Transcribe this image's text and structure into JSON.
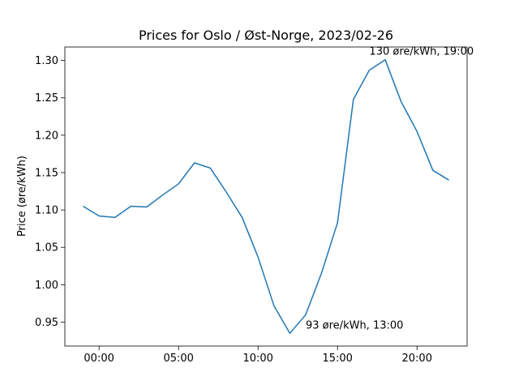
{
  "chart_data": {
    "type": "line",
    "title": "Prices for Oslo / Øst-Norge, 2023/02-26",
    "xlabel": "",
    "ylabel": "Price (øre/kWh)",
    "x_unit": "hour",
    "x": [
      -1,
      0,
      1,
      2,
      3,
      4,
      5,
      6,
      7,
      8,
      9,
      10,
      11,
      12,
      13,
      14,
      15,
      16,
      17,
      18,
      19,
      20,
      21,
      22
    ],
    "series": [
      {
        "values": [
          1.105,
          1.092,
          1.09,
          1.105,
          1.104,
          1.12,
          1.135,
          1.163,
          1.156,
          1.124,
          1.09,
          1.037,
          0.972,
          0.935,
          0.96,
          1.016,
          1.083,
          1.248,
          1.287,
          1.301,
          1.245,
          1.205,
          1.153,
          1.14
        ],
        "color": "#1f77b4"
      }
    ],
    "xlim": [
      -2.15,
      23.15
    ],
    "ylim": [
      0.918,
      1.318
    ],
    "xticks": [
      0,
      5,
      10,
      15,
      20
    ],
    "xtick_labels": [
      "00:00",
      "05:00",
      "10:00",
      "15:00",
      "20:00"
    ],
    "yticks": [
      0.95,
      1.0,
      1.05,
      1.1,
      1.15,
      1.2,
      1.25,
      1.3
    ],
    "ytick_labels": [
      "0.95",
      "1.00",
      "1.05",
      "1.10",
      "1.15",
      "1.20",
      "1.25",
      "1.30"
    ],
    "annotations": [
      {
        "text": "130 øre/kWh, 19:00",
        "x": 17,
        "y": 1.301
      },
      {
        "text": "93 øre/kWh, 13:00",
        "x": 13,
        "y": 0.935
      }
    ],
    "grid": false,
    "legend": "none"
  }
}
